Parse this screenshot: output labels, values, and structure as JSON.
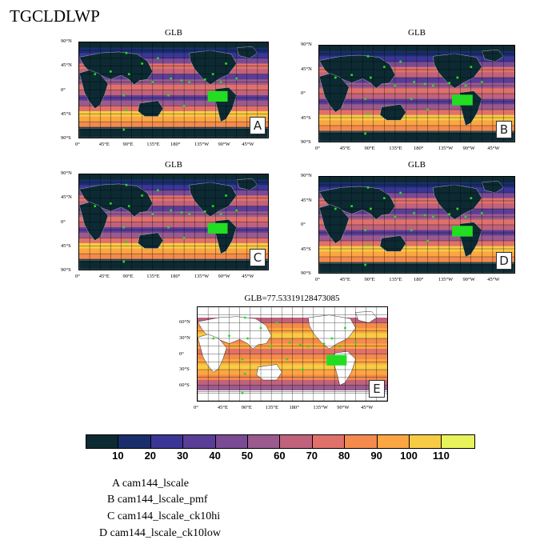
{
  "figure_title": "TGCLDLWP",
  "panels": [
    {
      "id": "A",
      "title": "GLB"
    },
    {
      "id": "B",
      "title": "GLB"
    },
    {
      "id": "C",
      "title": "GLB"
    },
    {
      "id": "D",
      "title": "GLB"
    }
  ],
  "diff_panel": {
    "id": "E",
    "title": "GLB=77.53319128473085"
  },
  "lat_ticks_global": [
    "90°N",
    "45°N",
    "0°",
    "45°S",
    "90°S"
  ],
  "lon_ticks": [
    "0°",
    "45°E",
    "90°E",
    "135°E",
    "180°",
    "135°W",
    "90°W",
    "45°W"
  ],
  "lat_ticks_diff": [
    "60°N",
    "30°N",
    "0°",
    "30°S",
    "60°S"
  ],
  "colorbar": {
    "labels": [
      "10",
      "20",
      "30",
      "40",
      "50",
      "60",
      "70",
      "80",
      "90",
      "100",
      "110"
    ],
    "colors": [
      "#0d2a33",
      "#1a2e6b",
      "#3b3696",
      "#5a3d96",
      "#7a4b94",
      "#9a5a8e",
      "#c0627c",
      "#e0716a",
      "#f48a4d",
      "#fba642",
      "#f8cb45",
      "#e8f25a"
    ]
  },
  "legend": [
    "A  cam144_lscale",
    "B  cam144_lscale_pmf",
    "C  cam144_lscale_ck10hi",
    "D  cam144_lscale_ck10low"
  ],
  "marker_color": "#22dd22"
}
